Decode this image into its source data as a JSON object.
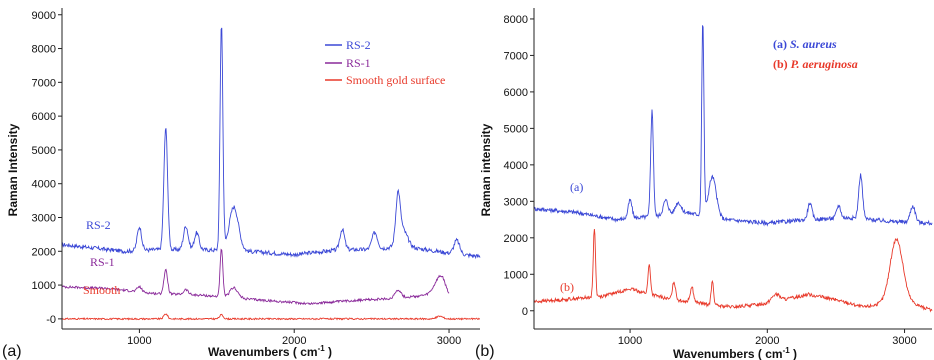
{
  "chart_data": [
    {
      "type": "line",
      "panel_label": "(a)",
      "xlabel": "Wavenumbers ( cm",
      "xlabel_sup": "-1",
      "xlabel_close": " )",
      "ylabel": "Raman Intensity",
      "xlim": [
        500,
        3200
      ],
      "ylim": [
        -300,
        9200
      ],
      "x_ticks": [
        1000,
        2000,
        3000
      ],
      "y_ticks": [
        {
          "v": 0,
          "label": "-0"
        },
        {
          "v": 1000,
          "label": "1000"
        },
        {
          "v": 2000,
          "label": "2000"
        },
        {
          "v": 3000,
          "label": "3000"
        },
        {
          "v": 4000,
          "label": "4000"
        },
        {
          "v": 5000,
          "label": "5000"
        },
        {
          "v": 6000,
          "label": "6000"
        },
        {
          "v": 7000,
          "label": "7000"
        },
        {
          "v": 8000,
          "label": "8000"
        },
        {
          "v": 9000,
          "label": "9000"
        }
      ],
      "legend": [
        "RS-2",
        "RS-1",
        "Smooth gold surface"
      ],
      "legend_position": "top-right",
      "series": [
        {
          "name": "RS-2",
          "color": "#3b48d6",
          "label": "RS-2",
          "xrange": [
            500,
            3200
          ],
          "baseline": [
            [
              500,
              2200
            ],
            [
              900,
              2000
            ],
            [
              1100,
              2050
            ],
            [
              1400,
              2050
            ],
            [
              1700,
              2000
            ],
            [
              2000,
              1900
            ],
            [
              2300,
              2050
            ],
            [
              2500,
              2050
            ],
            [
              2700,
              2150
            ],
            [
              3000,
              1950
            ],
            [
              3200,
              1850
            ]
          ],
          "peaks": [
            [
              1000,
              700,
              14
            ],
            [
              1170,
              3600,
              12
            ],
            [
              1300,
              700,
              15
            ],
            [
              1370,
              500,
              15
            ],
            [
              1530,
              6700,
              9
            ],
            [
              1610,
              1300,
              30
            ],
            [
              2310,
              600,
              15
            ],
            [
              2520,
              500,
              18
            ],
            [
              2670,
              1350,
              14
            ],
            [
              2700,
              500,
              30
            ],
            [
              3050,
              400,
              18
            ]
          ],
          "noise": 120
        },
        {
          "name": "RS-1",
          "color": "#8a2a9a",
          "label": "RS-1",
          "xrange": [
            500,
            3000
          ],
          "baseline": [
            [
              500,
              950
            ],
            [
              800,
              900
            ],
            [
              1100,
              750
            ],
            [
              1400,
              700
            ],
            [
              1800,
              550
            ],
            [
              2100,
              450
            ],
            [
              2400,
              550
            ],
            [
              2650,
              600
            ],
            [
              2850,
              700
            ],
            [
              2960,
              950
            ],
            [
              3000,
              700
            ]
          ],
          "peaks": [
            [
              1000,
              150,
              14
            ],
            [
              1170,
              700,
              12
            ],
            [
              1300,
              150,
              15
            ],
            [
              1530,
              1400,
              9
            ],
            [
              1610,
              300,
              25
            ],
            [
              2670,
              250,
              20
            ],
            [
              2940,
              350,
              30
            ]
          ],
          "noise": 70
        },
        {
          "name": "Smooth gold surface",
          "color": "#e8392a",
          "label": "Smooth",
          "xrange": [
            500,
            3200
          ],
          "baseline": [
            [
              500,
              0
            ],
            [
              3200,
              0
            ]
          ],
          "peaks": [
            [
              1170,
              150,
              12
            ],
            [
              1530,
              120,
              12
            ],
            [
              2940,
              80,
              20
            ]
          ],
          "noise": 45
        }
      ]
    },
    {
      "type": "line",
      "panel_label": "(b)",
      "xlabel": "Wavenumbers ( cm",
      "xlabel_sup": "-1",
      "xlabel_close": " )",
      "ylabel": "Raman intensity",
      "xlim": [
        300,
        3200
      ],
      "ylim": [
        -500,
        8300
      ],
      "x_ticks": [
        1000,
        2000,
        3000
      ],
      "y_ticks": [
        {
          "v": 0,
          "label": "0"
        },
        {
          "v": 1000,
          "label": "1000"
        },
        {
          "v": 2000,
          "label": "2000"
        },
        {
          "v": 3000,
          "label": "3000"
        },
        {
          "v": 4000,
          "label": "4000"
        },
        {
          "v": 5000,
          "label": "5000"
        },
        {
          "v": 6000,
          "label": "6000"
        },
        {
          "v": 7000,
          "label": "7000"
        },
        {
          "v": 8000,
          "label": "8000"
        }
      ],
      "legend": [
        {
          "prefix": "(a) ",
          "name": "S. aureus"
        },
        {
          "prefix": "(b) ",
          "name": "P. aeruginosa"
        }
      ],
      "legend_position": "top-right",
      "series": [
        {
          "name": "S. aureus",
          "color": "#3b48d6",
          "label": "(a)",
          "xrange": [
            300,
            3200
          ],
          "baseline": [
            [
              300,
              2800
            ],
            [
              600,
              2700
            ],
            [
              900,
              2500
            ],
            [
              1200,
              2600
            ],
            [
              1400,
              2700
            ],
            [
              1700,
              2500
            ],
            [
              2000,
              2400
            ],
            [
              2300,
              2500
            ],
            [
              2600,
              2550
            ],
            [
              2900,
              2450
            ],
            [
              3200,
              2400
            ]
          ],
          "peaks": [
            [
              1000,
              500,
              14
            ],
            [
              1160,
              2900,
              10
            ],
            [
              1260,
              400,
              18
            ],
            [
              1350,
              300,
              20
            ],
            [
              1530,
              5300,
              8
            ],
            [
              1600,
              1100,
              28
            ],
            [
              2310,
              450,
              15
            ],
            [
              2520,
              350,
              15
            ],
            [
              2680,
              1200,
              14
            ],
            [
              3060,
              450,
              18
            ]
          ],
          "noise": 110
        },
        {
          "name": "P. aeruginosa",
          "color": "#e8392a",
          "label": "(b)",
          "xrange": [
            300,
            3200
          ],
          "baseline": [
            [
              300,
              250
            ],
            [
              500,
              300
            ],
            [
              800,
              400
            ],
            [
              1000,
              600
            ],
            [
              1150,
              450
            ],
            [
              1300,
              300
            ],
            [
              1450,
              250
            ],
            [
              1600,
              150
            ],
            [
              1750,
              100
            ],
            [
              2000,
              200
            ],
            [
              2300,
              450
            ],
            [
              2500,
              300
            ],
            [
              2700,
              100
            ],
            [
              2850,
              200
            ],
            [
              3000,
              300
            ],
            [
              3200,
              0
            ]
          ],
          "peaks": [
            [
              740,
              1900,
              8
            ],
            [
              1140,
              800,
              9
            ],
            [
              1320,
              500,
              12
            ],
            [
              1450,
              400,
              12
            ],
            [
              1600,
              650,
              9
            ],
            [
              2060,
              200,
              30
            ],
            [
              2940,
              1700,
              45
            ]
          ],
          "noise": 90
        }
      ]
    }
  ]
}
